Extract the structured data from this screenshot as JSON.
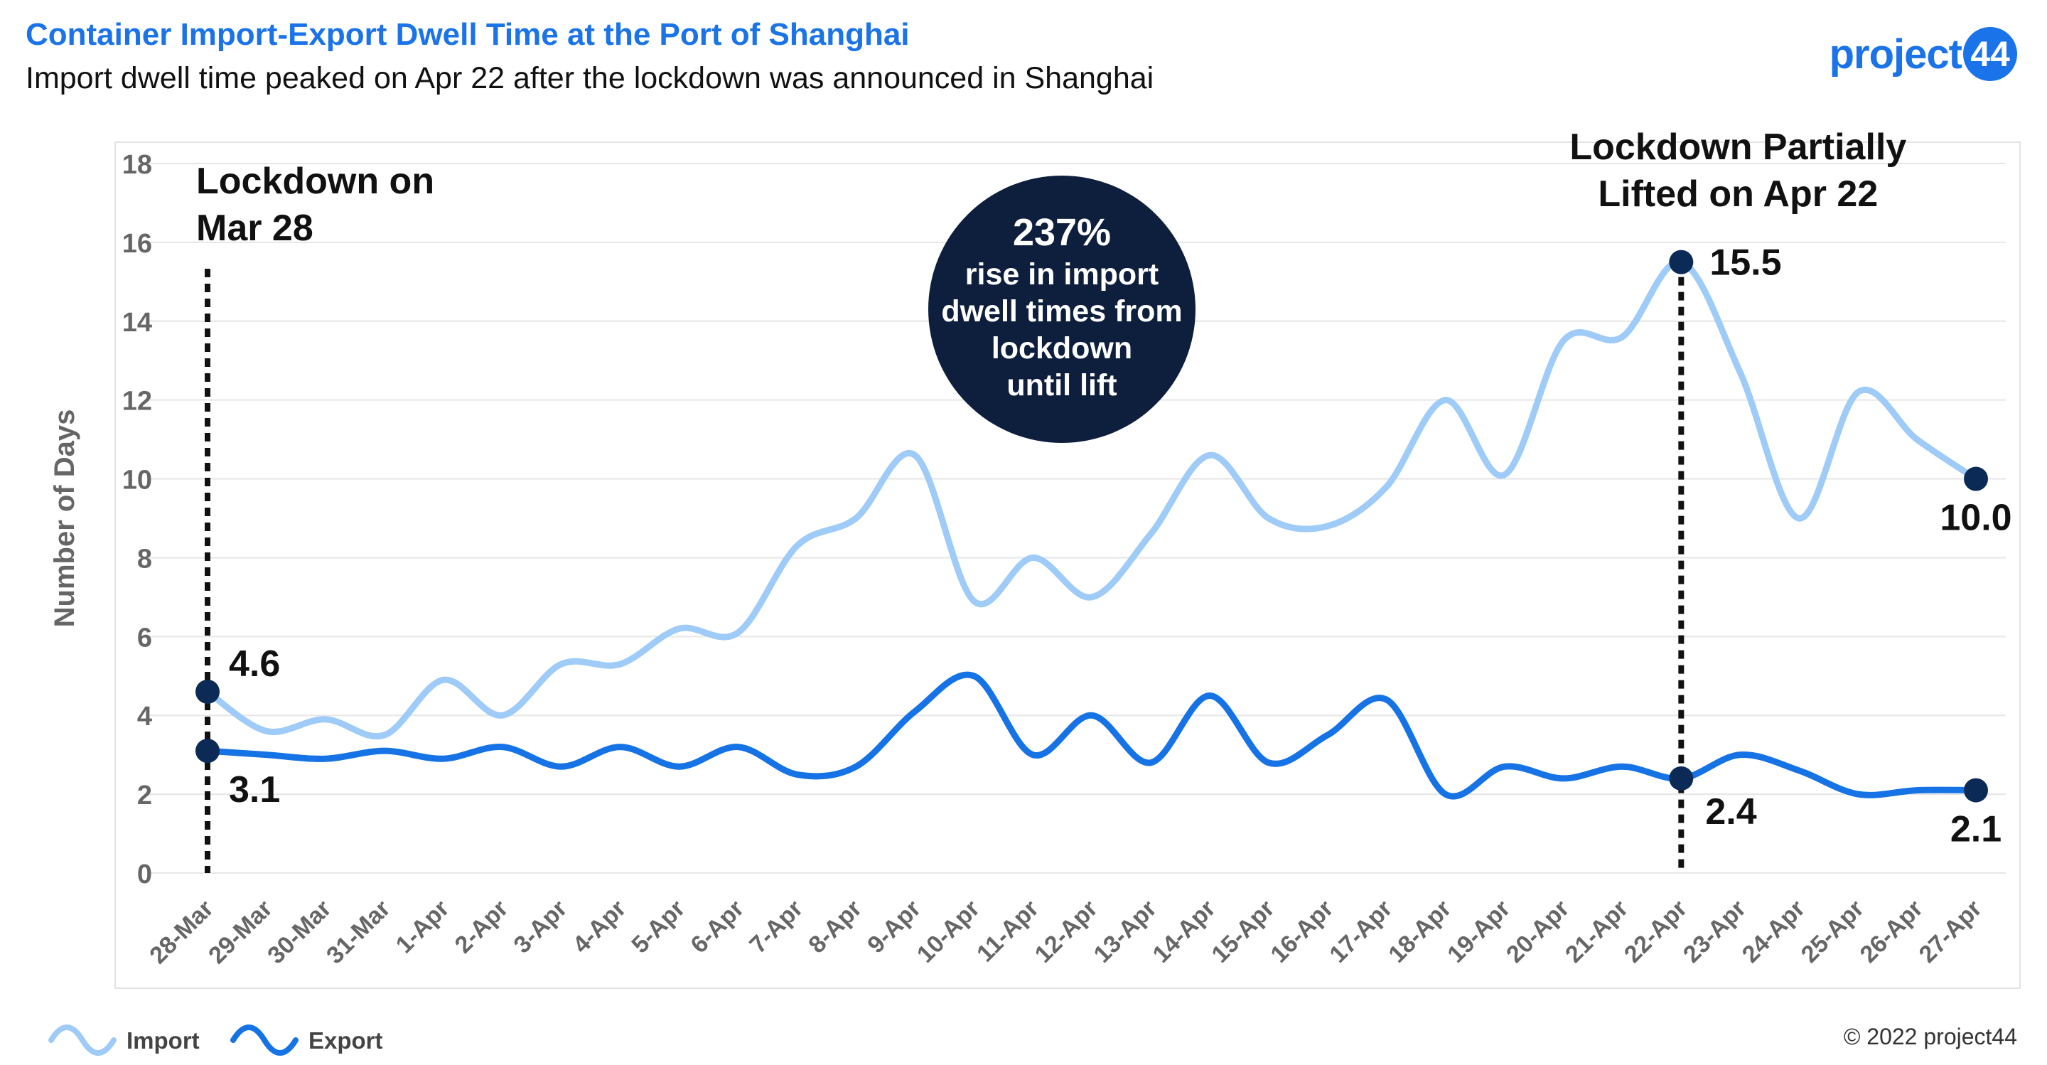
{
  "header": {
    "title": "Container Import-Export Dwell Time at the Port of Shanghai",
    "subtitle": "Import dwell time peaked on Apr 22 after the lockdown was announced in Shanghai"
  },
  "logo": {
    "text": "project",
    "badge": "44"
  },
  "footer": {
    "copyright": "© 2022 project44"
  },
  "colors": {
    "title": "#1a73e8",
    "import": "#9ecbf7",
    "export": "#1673e6",
    "marker": "#0b2a55",
    "callout": "#0e1f3d"
  },
  "chart_data": {
    "type": "line",
    "ylabel": "Number of Days",
    "ylim": [
      0,
      18
    ],
    "yticks": [
      0,
      2,
      4,
      6,
      8,
      10,
      12,
      14,
      16,
      18
    ],
    "grid": true,
    "legend_position": "bottom-left",
    "categories": [
      "28-Mar",
      "29-Mar",
      "30-Mar",
      "31-Mar",
      "1-Apr",
      "2-Apr",
      "3-Apr",
      "4-Apr",
      "5-Apr",
      "6-Apr",
      "7-Apr",
      "8-Apr",
      "9-Apr",
      "10-Apr",
      "11-Apr",
      "12-Apr",
      "13-Apr",
      "14-Apr",
      "15-Apr",
      "16-Apr",
      "17-Apr",
      "18-Apr",
      "19-Apr",
      "20-Apr",
      "21-Apr",
      "22-Apr",
      "23-Apr",
      "24-Apr",
      "25-Apr",
      "26-Apr",
      "27-Apr"
    ],
    "series": [
      {
        "name": "Import",
        "values": [
          4.6,
          3.6,
          3.9,
          3.5,
          4.9,
          4.0,
          5.3,
          5.3,
          6.2,
          6.1,
          8.3,
          9.0,
          10.6,
          6.9,
          8.0,
          7.0,
          8.6,
          10.6,
          9.0,
          8.8,
          9.8,
          12.0,
          10.1,
          13.5,
          13.6,
          15.5,
          12.7,
          9.0,
          12.2,
          11.0,
          10.0
        ]
      },
      {
        "name": "Export",
        "values": [
          3.1,
          3.0,
          2.9,
          3.1,
          2.9,
          3.2,
          2.7,
          3.2,
          2.7,
          3.2,
          2.5,
          2.7,
          4.1,
          5.0,
          3.0,
          4.0,
          2.8,
          4.5,
          2.8,
          3.5,
          4.4,
          2.0,
          2.7,
          2.4,
          2.7,
          2.4,
          3.0,
          2.6,
          2.0,
          2.1,
          2.1
        ]
      }
    ],
    "point_labels": [
      {
        "text": "4.6",
        "series": "Import",
        "x": "28-Mar",
        "y": 4.6
      },
      {
        "text": "3.1",
        "series": "Export",
        "x": "28-Mar",
        "y": 3.1
      },
      {
        "text": "15.5",
        "series": "Import",
        "x": "22-Apr",
        "y": 15.5
      },
      {
        "text": "2.4",
        "series": "Export",
        "x": "22-Apr",
        "y": 2.4
      },
      {
        "text": "10.0",
        "series": "Import",
        "x": "27-Apr",
        "y": 10.0
      },
      {
        "text": "2.1",
        "series": "Export",
        "x": "27-Apr",
        "y": 2.1
      }
    ],
    "annotations": [
      {
        "x": "28-Mar",
        "lines": [
          "Lockdown on",
          "Mar 28"
        ]
      },
      {
        "x": "22-Apr",
        "lines": [
          "Lockdown Partially",
          "Lifted on Apr 22"
        ]
      }
    ],
    "callout": {
      "headline": "237%",
      "lines": [
        "rise in import",
        "dwell times from",
        "lockdown",
        "until lift"
      ]
    }
  }
}
